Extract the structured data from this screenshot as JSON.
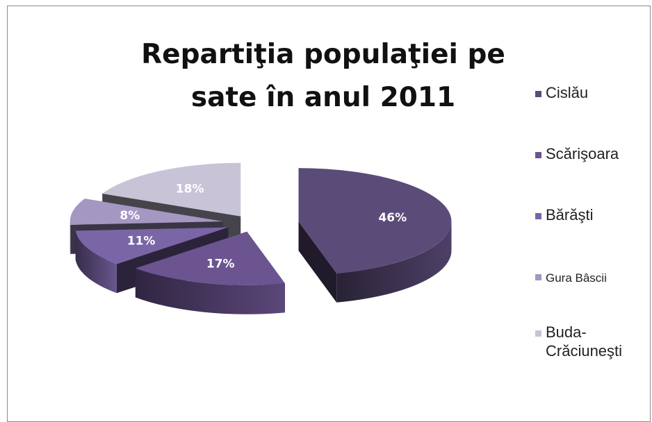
{
  "chart_data": {
    "type": "pie",
    "title": "Repartiţia populaţiei pe sate în anul 2011",
    "categories": [
      "Cislău",
      "Scărişoara",
      "Bărăşti",
      "Gura Bâscii",
      "Buda-Crăciuneşti"
    ],
    "values": [
      46,
      17,
      11,
      8,
      18
    ],
    "value_labels": [
      "46%",
      "17%",
      "11%",
      "8%",
      "18%"
    ],
    "colors": [
      "#5b4b79",
      "#6b5490",
      "#7a65a6",
      "#a497c2",
      "#c9c3d7"
    ],
    "style": "3d-exploded",
    "legend": "right"
  }
}
